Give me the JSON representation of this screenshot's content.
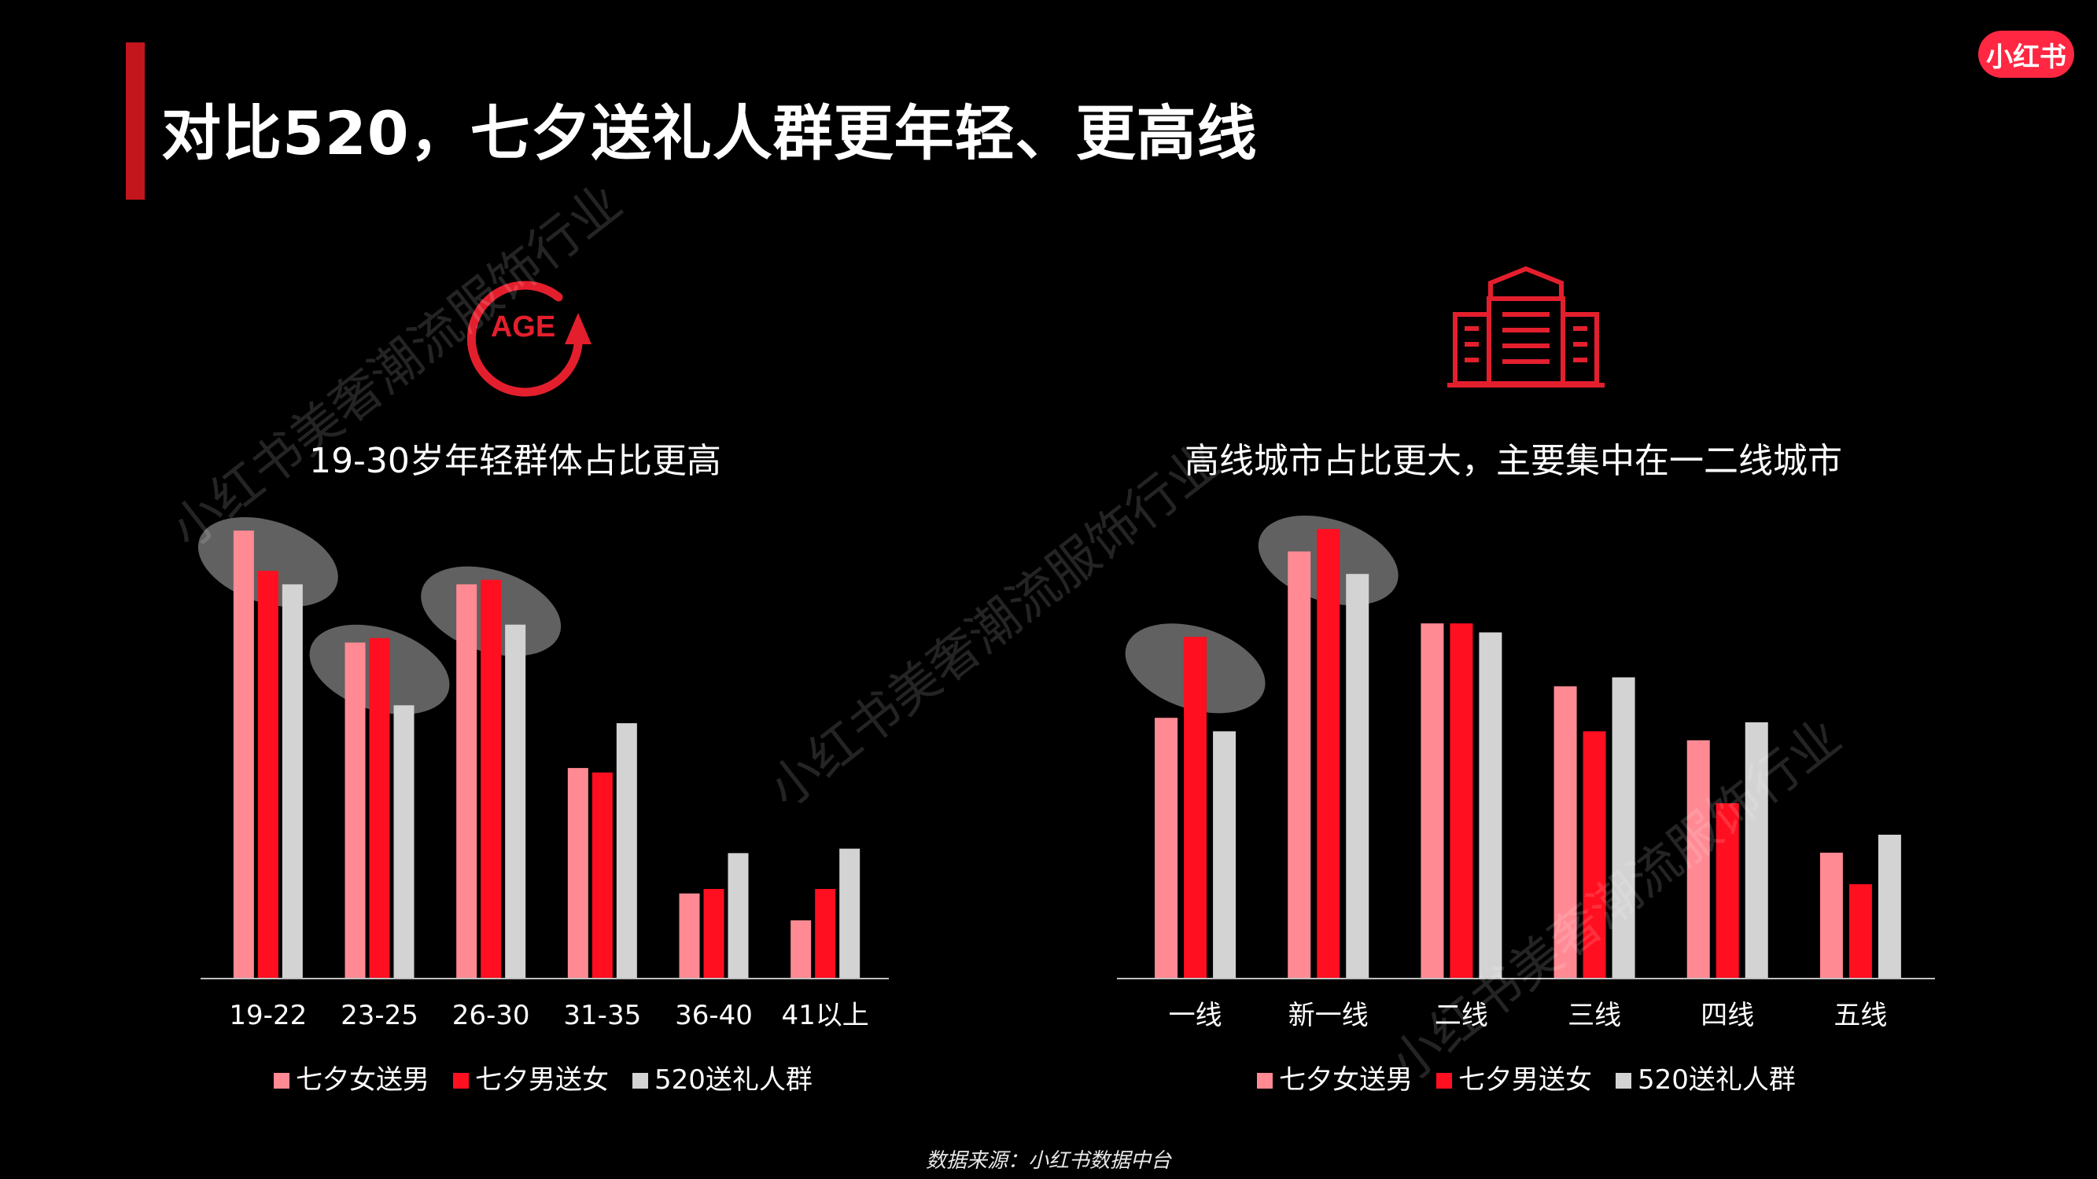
{
  "header": {
    "title": "对比520，七夕送礼人群更年轻、更高线",
    "logo_text": "小红书"
  },
  "age_icon_text": "AGE",
  "watermark": "小红书美奢潮流服饰行业",
  "source": "数据来源：小红书数据中台",
  "colors": {
    "series1": "#ff8a94",
    "series2": "#ff0f1f",
    "series3": "#d3d3d3",
    "accent": "#e41f2d"
  },
  "chart_data": [
    {
      "type": "bar",
      "title": "19-30岁年轻群体占比更高",
      "categories": [
        "19-22",
        "23-25",
        "26-30",
        "31-35",
        "36-40",
        "41以上"
      ],
      "series": [
        {
          "name": "七夕女送男",
          "values": [
            100,
            75,
            88,
            47,
            19,
            13
          ]
        },
        {
          "name": "七夕男送女",
          "values": [
            91,
            76,
            89,
            46,
            20,
            20
          ]
        },
        {
          "name": "520送礼人群",
          "values": [
            88,
            61,
            79,
            57,
            28,
            29
          ]
        }
      ],
      "ylim": [
        0,
        100
      ],
      "grid": false,
      "legend": "bottom",
      "highlighted_categories": [
        "19-22",
        "23-25",
        "26-30"
      ]
    },
    {
      "type": "bar",
      "title": "高线城市占比更大，主要集中在一二线城市",
      "categories": [
        "一线",
        "新一线",
        "二线",
        "三线",
        "四线",
        "五线"
      ],
      "series": [
        {
          "name": "七夕女送男",
          "values": [
            58,
            95,
            79,
            65,
            53,
            28
          ]
        },
        {
          "name": "七夕男送女",
          "values": [
            76,
            100,
            79,
            55,
            39,
            21
          ]
        },
        {
          "name": "520送礼人群",
          "values": [
            55,
            90,
            77,
            67,
            57,
            32
          ]
        }
      ],
      "ylim": [
        0,
        100
      ],
      "grid": false,
      "legend": "bottom",
      "highlighted_categories": [
        "一线",
        "新一线"
      ]
    }
  ]
}
